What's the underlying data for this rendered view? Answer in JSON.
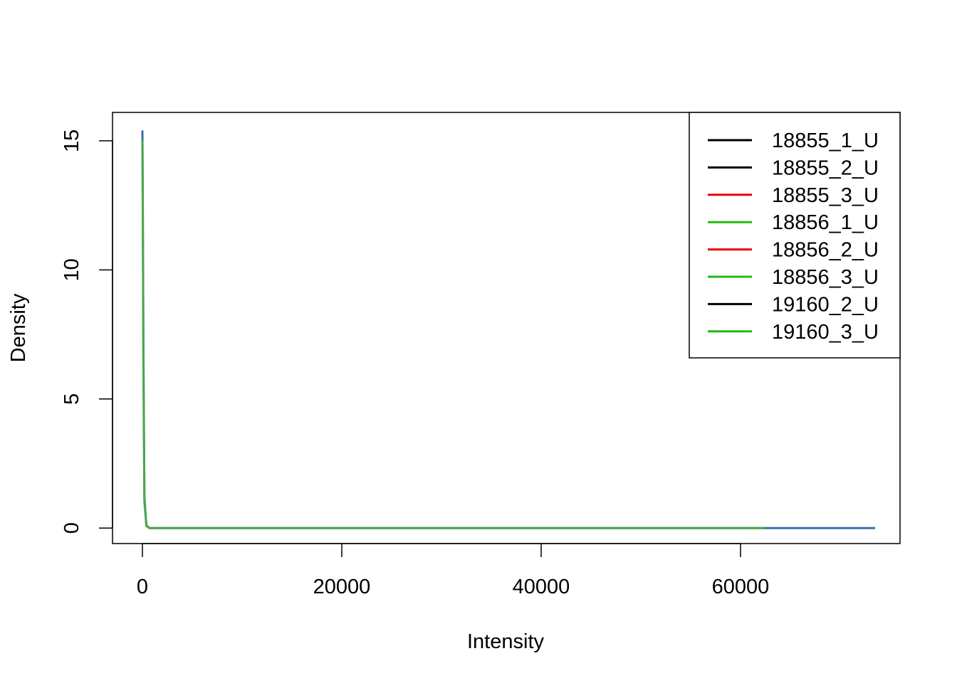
{
  "chart_data": {
    "type": "line",
    "title": "",
    "xlabel": "Intensity",
    "ylabel": "Density",
    "xlim": [
      -3000,
      76000
    ],
    "ylim": [
      -0.6,
      16.1
    ],
    "x_ticks": [
      0,
      20000,
      40000,
      60000
    ],
    "x_tick_labels": [
      "0",
      "20000",
      "40000",
      "60000"
    ],
    "y_ticks": [
      0,
      5,
      10,
      15
    ],
    "y_tick_labels": [
      "0",
      "5",
      "10",
      "15"
    ],
    "grid": false,
    "legend_position": "top-right",
    "legend": [
      {
        "label": "18855_1_U",
        "color": "#000000"
      },
      {
        "label": "18855_2_U",
        "color": "#000000"
      },
      {
        "label": "18855_3_U",
        "color": "#e8000b"
      },
      {
        "label": "18856_1_U",
        "color": "#1fbc13"
      },
      {
        "label": "18856_2_U",
        "color": "#e8000b"
      },
      {
        "label": "18856_3_U",
        "color": "#1fbc13"
      },
      {
        "label": "19160_2_U",
        "color": "#000000"
      },
      {
        "label": "19160_3_U",
        "color": "#1fbc13"
      }
    ],
    "series": [
      {
        "color": "#3a6fb0",
        "x": [
          0,
          30,
          100,
          200,
          400,
          700,
          73500
        ],
        "y": [
          15.4,
          13.5,
          7.0,
          1.2,
          0.1,
          0.0,
          0.0
        ]
      },
      {
        "color": "#4ba84a",
        "x": [
          0,
          30,
          100,
          200,
          400,
          700,
          62500
        ],
        "y": [
          15.0,
          13.0,
          6.5,
          1.0,
          0.08,
          0.0,
          0.0
        ]
      }
    ]
  }
}
